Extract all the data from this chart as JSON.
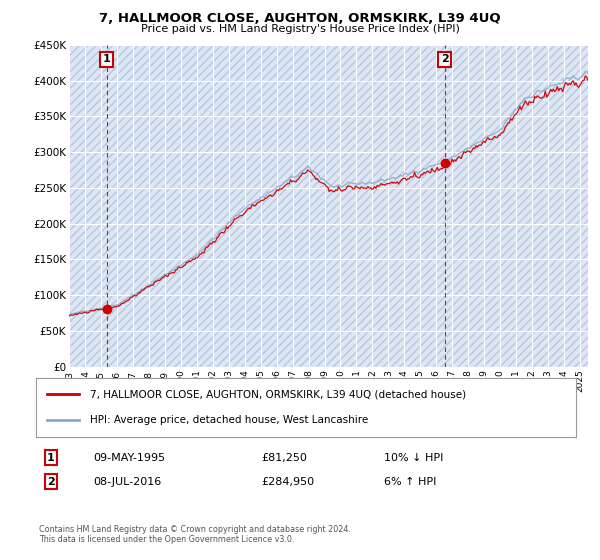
{
  "title": "7, HALLMOOR CLOSE, AUGHTON, ORMSKIRK, L39 4UQ",
  "subtitle": "Price paid vs. HM Land Registry's House Price Index (HPI)",
  "legend_label1": "7, HALLMOOR CLOSE, AUGHTON, ORMSKIRK, L39 4UQ (detached house)",
  "legend_label2": "HPI: Average price, detached house, West Lancashire",
  "transaction1_date": "09-MAY-1995",
  "transaction1_price": "£81,250",
  "transaction1_change": "10% ↓ HPI",
  "transaction2_date": "08-JUL-2016",
  "transaction2_price": "£284,950",
  "transaction2_change": "6% ↑ HPI",
  "footer": "Contains HM Land Registry data © Crown copyright and database right 2024.\nThis data is licensed under the Open Government Licence v3.0.",
  "ylim": [
    0,
    450000
  ],
  "yticks": [
    0,
    50000,
    100000,
    150000,
    200000,
    250000,
    300000,
    350000,
    400000,
    450000
  ],
  "ytick_labels": [
    "£0",
    "£50K",
    "£100K",
    "£150K",
    "£200K",
    "£250K",
    "£300K",
    "£350K",
    "£400K",
    "£450K"
  ],
  "transaction1_x": 1995.35,
  "transaction1_y": 81250,
  "transaction2_x": 2016.52,
  "transaction2_y": 284950,
  "background_color": "#ffffff",
  "plot_bg_color": "#dce6f5",
  "hatch_color": "#b8c8dc",
  "grid_color": "#ffffff",
  "line1_color": "#cc0000",
  "line2_color": "#88aacc",
  "vline_color": "#cc0000",
  "xmin": 1993,
  "xmax": 2025.5,
  "xticks": [
    1993,
    1994,
    1995,
    1996,
    1997,
    1998,
    1999,
    2000,
    2001,
    2002,
    2003,
    2004,
    2005,
    2006,
    2007,
    2008,
    2009,
    2010,
    2011,
    2012,
    2013,
    2014,
    2015,
    2016,
    2017,
    2018,
    2019,
    2020,
    2021,
    2022,
    2023,
    2024,
    2025
  ]
}
